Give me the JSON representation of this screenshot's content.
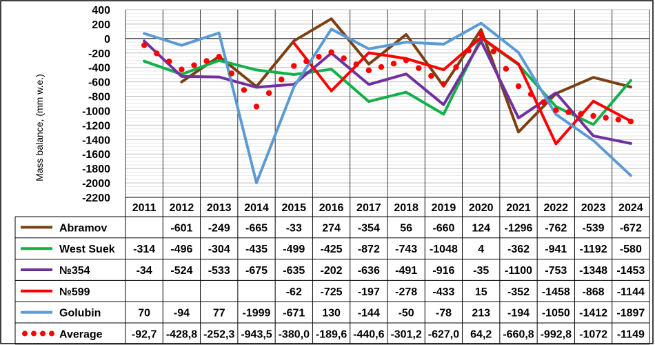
{
  "chart_data": {
    "type": "line",
    "ylabel": "Mass balance, (mm w.e.)",
    "ylim": [
      -2200,
      400
    ],
    "y_tick_step": 200,
    "grid": true,
    "legend_placement": "data table below chart",
    "categories": [
      "2011",
      "2012",
      "2013",
      "2014",
      "2015",
      "2016",
      "2017",
      "2018",
      "2019",
      "2020",
      "2021",
      "2022",
      "2023",
      "2024"
    ],
    "series": [
      {
        "name": "Abramov",
        "color": "#7B3F12",
        "style": "solid",
        "values": [
          null,
          -601,
          -249,
          -665,
          -33,
          274,
          -354,
          56,
          -660,
          124,
          -1296,
          -762,
          -539,
          -672
        ],
        "labels": [
          "",
          "-601",
          "-249",
          "-665",
          "-33",
          "274",
          "-354",
          "56",
          "-660",
          "124",
          "-1296",
          "-762",
          "-539",
          "-672"
        ]
      },
      {
        "name": "West Suek",
        "color": "#12B04A",
        "style": "solid",
        "values": [
          -314,
          -496,
          -304,
          -435,
          -499,
          -425,
          -872,
          -743,
          -1048,
          4,
          -362,
          -941,
          -1192,
          -580
        ],
        "labels": [
          "-314",
          "-496",
          "-304",
          "-435",
          "-499",
          "-425",
          "-872",
          "-743",
          "-1048",
          "4",
          "-362",
          "-941",
          "-1192",
          "-580"
        ]
      },
      {
        "name": "№354",
        "color": "#7030A0",
        "style": "solid",
        "values": [
          -34,
          -524,
          -533,
          -675,
          -635,
          -202,
          -636,
          -491,
          -916,
          -35,
          -1100,
          -753,
          -1348,
          -1453
        ],
        "labels": [
          "-34",
          "-524",
          "-533",
          "-675",
          "-635",
          "-202",
          "-636",
          "-491",
          "-916",
          "-35",
          "-1100",
          "-753",
          "-1348",
          "-1453"
        ]
      },
      {
        "name": "№599",
        "color": "#FF0000",
        "style": "solid",
        "values": [
          null,
          null,
          null,
          null,
          -62,
          -725,
          -197,
          -278,
          -433,
          15,
          -352,
          -1458,
          -868,
          -1144
        ],
        "labels": [
          "",
          "",
          "",
          "",
          "-62",
          "-725",
          "-197",
          "-278",
          "-433",
          "15",
          "-352",
          "-1458",
          "-868",
          "-1144"
        ]
      },
      {
        "name": "Golubin",
        "color": "#5B9BD5",
        "style": "solid",
        "values": [
          70,
          -94,
          77,
          -1999,
          -671,
          130,
          -144,
          -50,
          -78,
          213,
          -194,
          -1050,
          -1412,
          -1897
        ],
        "labels": [
          "70",
          "-94",
          "77",
          "-1999",
          "-671",
          "130",
          "-144",
          "-50",
          "-78",
          "213",
          "-194",
          "-1050",
          "-1412",
          "-1897"
        ]
      },
      {
        "name": "Average",
        "color": "#FF0000",
        "style": "dotted",
        "values": [
          -92.7,
          -428.8,
          -252.3,
          -943.5,
          -380.0,
          -189.6,
          -440.6,
          -301.2,
          -627.0,
          64.2,
          -660.8,
          -992.8,
          -1072,
          -1149
        ],
        "labels": [
          "-92,7",
          "-428,8",
          "-252,3",
          "-943,5",
          "-380,0",
          "-189,6",
          "-440,6",
          "-301,2",
          "-627,0",
          "64,2",
          "-660,8",
          "-992,8",
          "-1072",
          "-1149"
        ]
      }
    ]
  }
}
